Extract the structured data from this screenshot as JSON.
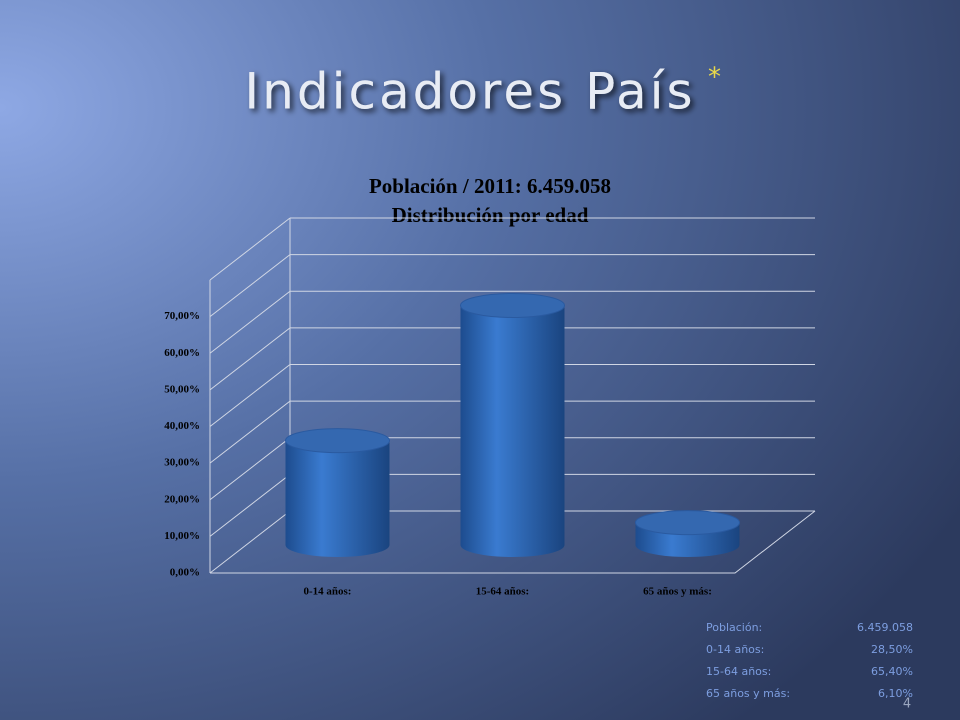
{
  "slide_title": "Indicadores País",
  "title_mark": "*",
  "page_number": "4",
  "chart_data": {
    "type": "cylinder",
    "title": "Población  / 2011: 6.459.058",
    "subtitle": "Distribución por edad",
    "categories": [
      "0-14 años:",
      "15-64 años:",
      "65 años y más:"
    ],
    "values": [
      28.5,
      65.4,
      6.1
    ],
    "value_labels": [
      "28,50%",
      "65,40%",
      "6,10%"
    ],
    "color": "#2f6bbd",
    "ylim": [
      0,
      80
    ],
    "yticks": [
      {
        "value": 0,
        "label": "0,00%"
      },
      {
        "value": 10,
        "label": "10,00%"
      },
      {
        "value": 20,
        "label": "20,00%"
      },
      {
        "value": 30,
        "label": "30,00%"
      },
      {
        "value": 40,
        "label": "40,00%"
      },
      {
        "value": 50,
        "label": "50,00%"
      },
      {
        "value": 60,
        "label": "60,00%"
      },
      {
        "value": 70,
        "label": "70,00%"
      }
    ],
    "grid": true
  },
  "table": {
    "label": "Población:",
    "value": "6.459.058"
  }
}
